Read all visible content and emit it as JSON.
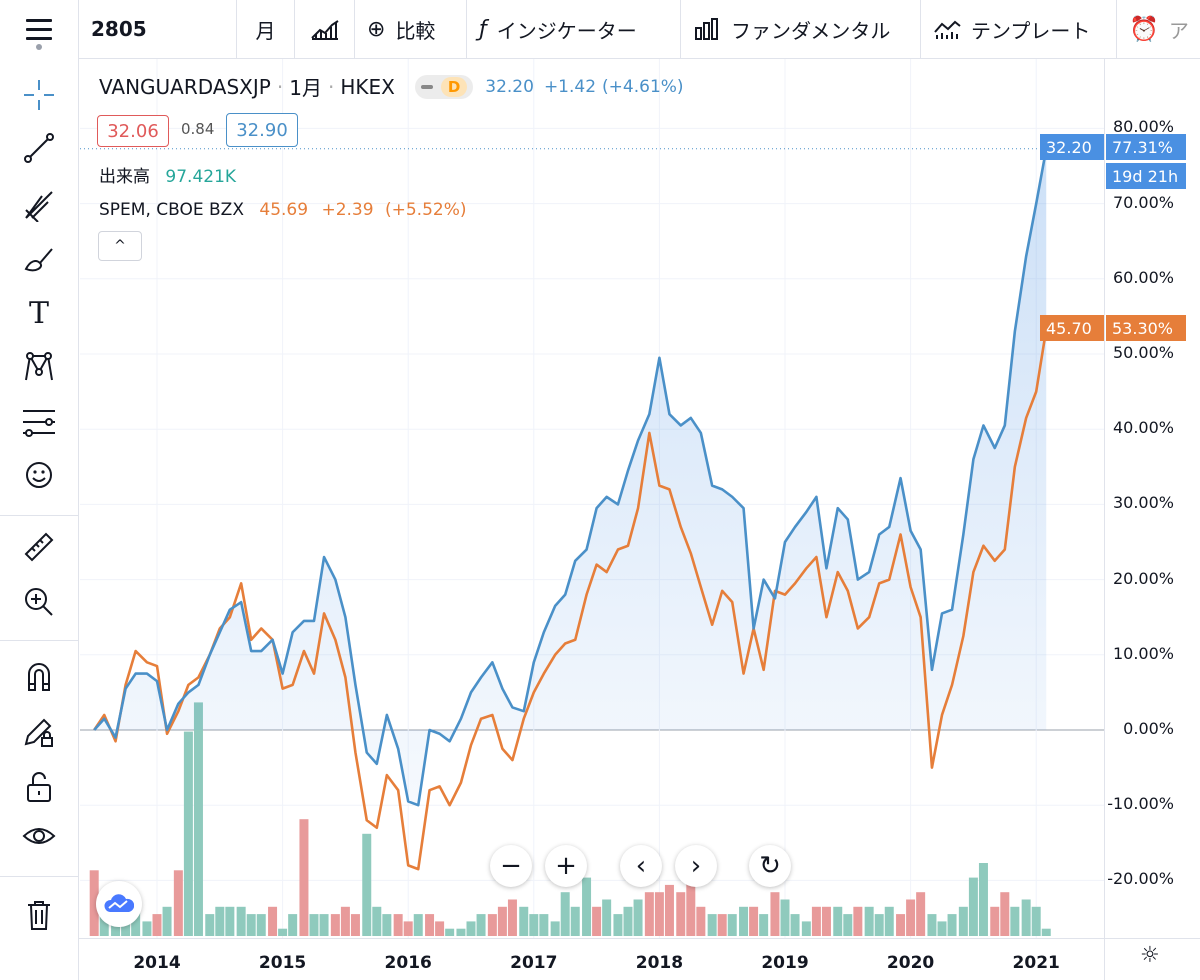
{
  "toolbar": {
    "symbol": "2805",
    "interval": "月",
    "compare_label": "比較",
    "indicator_label": "インジケーター",
    "fundamental_label": "ファンダメンタル",
    "template_label": "テンプレート",
    "alert_label": "ア",
    "icons": [
      "menu-icon",
      "bar-style-icon",
      "plus-circle-icon",
      "fx-icon",
      "bar-chart-icon",
      "template-icon",
      "alarm-clock-icon"
    ]
  },
  "left_tools": [
    "crosshair-icon",
    "trendline-icon",
    "pitchfork-icon",
    "brush-icon",
    "text-icon",
    "pattern-icon",
    "forecast-icon",
    "emoji-icon",
    "ruler-icon",
    "zoom-in-icon",
    "magnet-icon",
    "lock-pencil-icon",
    "unlock-icon",
    "eye-icon",
    "trash-icon"
  ],
  "legend": {
    "symbol": "VANGUARDASXJP",
    "interval": "1月",
    "exchange": "HKEX",
    "badge": "D",
    "price": "32.20",
    "change": "+1.42",
    "change_pct": "(+4.61%)",
    "bid": "32.06",
    "spread": "0.84",
    "ask": "32.90",
    "volume_label": "出来高",
    "volume_value": "97.421K",
    "compare_symbol": "SPEM, CBOE BZX",
    "compare_price": "45.69",
    "compare_change": "+2.39",
    "compare_change_pct": "(+5.52%)",
    "collapse": "^"
  },
  "price_tags": {
    "blue_price": "32.20",
    "blue_pct": "77.31%",
    "countdown": "19d 21h",
    "orange_price": "45.70",
    "orange_pct": "53.30%"
  },
  "colors": {
    "blue": "#4a90c8",
    "orange": "#e67e3a",
    "vol_up": "#8fcabd",
    "vol_down": "#e89a9a",
    "tag_blue": "#4a90e2",
    "tag_orange": "#e67e3a"
  },
  "chart_data": {
    "type": "line",
    "y_axis_unit": "%",
    "ylim": [
      -25,
      82
    ],
    "y_ticks": [
      "80.00%",
      "70.00%",
      "60.00%",
      "50.00%",
      "40.00%",
      "30.00%",
      "20.00%",
      "10.00%",
      "0.00%",
      "-10.00%",
      "-20.00%"
    ],
    "x_ticks": [
      "2014",
      "2015",
      "2016",
      "2017",
      "2018",
      "2019",
      "2020",
      "2021"
    ],
    "x_range": [
      2013.5,
      2021.2
    ],
    "grid": true,
    "series": [
      {
        "name": "VANGUARDASXJP",
        "x": [
          2013.5,
          2013.58,
          2013.67,
          2013.75,
          2013.83,
          2013.92,
          2014.0,
          2014.08,
          2014.17,
          2014.25,
          2014.33,
          2014.42,
          2014.5,
          2014.58,
          2014.67,
          2014.75,
          2014.83,
          2014.92,
          2015.0,
          2015.08,
          2015.17,
          2015.25,
          2015.33,
          2015.42,
          2015.5,
          2015.58,
          2015.67,
          2015.75,
          2015.83,
          2015.92,
          2016.0,
          2016.08,
          2016.17,
          2016.25,
          2016.33,
          2016.42,
          2016.5,
          2016.58,
          2016.67,
          2016.75,
          2016.83,
          2016.92,
          2017.0,
          2017.08,
          2017.17,
          2017.25,
          2017.33,
          2017.42,
          2017.5,
          2017.58,
          2017.67,
          2017.75,
          2017.83,
          2017.92,
          2018.0,
          2018.08,
          2018.17,
          2018.25,
          2018.33,
          2018.42,
          2018.5,
          2018.58,
          2018.67,
          2018.75,
          2018.83,
          2018.92,
          2019.0,
          2019.08,
          2019.17,
          2019.25,
          2019.33,
          2019.42,
          2019.5,
          2019.58,
          2019.67,
          2019.75,
          2019.83,
          2019.92,
          2020.0,
          2020.08,
          2020.17,
          2020.25,
          2020.33,
          2020.42,
          2020.5,
          2020.58,
          2020.67,
          2020.75,
          2020.83,
          2020.92,
          2021.0,
          2021.08
        ],
        "values": [
          0.0,
          1.5,
          -1.0,
          5.5,
          7.5,
          7.5,
          6.5,
          0.0,
          3.5,
          5.0,
          6.0,
          10.0,
          13.0,
          16.0,
          17.0,
          10.5,
          10.5,
          12.0,
          7.5,
          13.0,
          14.5,
          14.5,
          23.0,
          20.0,
          15.0,
          6.0,
          -3.0,
          -4.5,
          2.0,
          -2.5,
          -9.5,
          -10.0,
          0.0,
          -0.5,
          -1.5,
          1.5,
          5.0,
          7.0,
          9.0,
          5.5,
          3.0,
          2.5,
          9.0,
          13.0,
          16.5,
          18.0,
          22.5,
          24.0,
          29.5,
          31.0,
          30.0,
          34.5,
          38.5,
          42.0,
          49.5,
          42.0,
          40.5,
          41.5,
          39.5,
          32.5,
          32.0,
          31.0,
          29.5,
          13.5,
          20.0,
          17.5,
          25.0,
          27.0,
          29.0,
          31.0,
          21.5,
          29.5,
          28.0,
          20.0,
          21.0,
          26.0,
          27.0,
          33.5,
          26.5,
          24.0,
          8.0,
          15.5,
          16.0,
          26.0,
          36.0,
          40.5,
          37.5,
          40.5,
          53.0,
          63.0,
          70.0,
          77.3
        ]
      },
      {
        "name": "SPEM, CBOE BZX",
        "x": [
          2013.5,
          2013.58,
          2013.67,
          2013.75,
          2013.83,
          2013.92,
          2014.0,
          2014.08,
          2014.17,
          2014.25,
          2014.33,
          2014.42,
          2014.5,
          2014.58,
          2014.67,
          2014.75,
          2014.83,
          2014.92,
          2015.0,
          2015.08,
          2015.17,
          2015.25,
          2015.33,
          2015.42,
          2015.5,
          2015.58,
          2015.67,
          2015.75,
          2015.83,
          2015.92,
          2016.0,
          2016.08,
          2016.17,
          2016.25,
          2016.33,
          2016.42,
          2016.5,
          2016.58,
          2016.67,
          2016.75,
          2016.83,
          2016.92,
          2017.0,
          2017.08,
          2017.17,
          2017.25,
          2017.33,
          2017.42,
          2017.5,
          2017.58,
          2017.67,
          2017.75,
          2017.83,
          2017.92,
          2018.0,
          2018.08,
          2018.17,
          2018.25,
          2018.33,
          2018.42,
          2018.5,
          2018.58,
          2018.67,
          2018.75,
          2018.83,
          2018.92,
          2019.0,
          2019.08,
          2019.17,
          2019.25,
          2019.33,
          2019.42,
          2019.5,
          2019.58,
          2019.67,
          2019.75,
          2019.83,
          2019.92,
          2020.0,
          2020.08,
          2020.17,
          2020.25,
          2020.33,
          2020.42,
          2020.5,
          2020.58,
          2020.67,
          2020.75,
          2020.83,
          2020.92,
          2021.0,
          2021.08
        ],
        "values": [
          0.0,
          2.0,
          -1.5,
          6.0,
          10.5,
          9.0,
          8.5,
          -0.5,
          2.5,
          6.0,
          7.0,
          10.0,
          13.5,
          15.0,
          19.5,
          12.0,
          13.5,
          12.0,
          5.5,
          6.0,
          10.5,
          7.5,
          15.5,
          12.0,
          7.0,
          -3.0,
          -12.0,
          -13.0,
          -6.0,
          -8.0,
          -18.0,
          -18.5,
          -8.0,
          -7.5,
          -10.0,
          -7.0,
          -2.0,
          1.5,
          2.0,
          -2.5,
          -4.0,
          1.5,
          5.0,
          7.5,
          10.0,
          11.5,
          12.0,
          18.0,
          22.0,
          21.0,
          24.0,
          24.5,
          29.5,
          39.5,
          32.5,
          32.0,
          27.0,
          23.5,
          19.0,
          14.0,
          18.5,
          17.0,
          7.5,
          13.5,
          8.0,
          18.5,
          18.0,
          19.5,
          21.5,
          23.0,
          15.0,
          21.0,
          18.5,
          13.5,
          15.0,
          19.5,
          20.0,
          26.0,
          19.0,
          15.0,
          -5.0,
          2.0,
          6.0,
          12.5,
          21.0,
          24.5,
          22.5,
          24.0,
          35.0,
          41.5,
          45.0,
          53.3
        ]
      }
    ],
    "volume": {
      "x": [
        2013.5,
        2013.58,
        2013.67,
        2013.75,
        2013.83,
        2013.92,
        2014.0,
        2014.08,
        2014.17,
        2014.25,
        2014.33,
        2014.42,
        2014.5,
        2014.58,
        2014.67,
        2014.75,
        2014.83,
        2014.92,
        2015.0,
        2015.08,
        2015.17,
        2015.25,
        2015.33,
        2015.42,
        2015.5,
        2015.58,
        2015.67,
        2015.75,
        2015.83,
        2015.92,
        2016.0,
        2016.08,
        2016.17,
        2016.25,
        2016.33,
        2016.42,
        2016.5,
        2016.58,
        2016.67,
        2016.75,
        2016.83,
        2016.92,
        2017.0,
        2017.08,
        2017.17,
        2017.25,
        2017.33,
        2017.42,
        2017.5,
        2017.58,
        2017.67,
        2017.75,
        2017.83,
        2017.92,
        2018.0,
        2018.08,
        2018.17,
        2018.25,
        2018.33,
        2018.42,
        2018.5,
        2018.58,
        2018.67,
        2018.75,
        2018.83,
        2018.92,
        2019.0,
        2019.08,
        2019.17,
        2019.25,
        2019.33,
        2019.42,
        2019.5,
        2019.58,
        2019.67,
        2019.75,
        2019.83,
        2019.92,
        2020.0,
        2020.08,
        2020.17,
        2020.25,
        2020.33,
        2020.42,
        2020.5,
        2020.58,
        2020.67,
        2020.75,
        2020.83,
        2020.92,
        2021.0,
        2021.08
      ],
      "values": [
        9,
        3,
        2,
        4,
        5,
        2,
        3,
        4,
        9,
        28,
        32,
        3,
        4,
        4,
        4,
        3,
        3,
        4,
        1,
        3,
        16,
        3,
        3,
        3,
        4,
        3,
        14,
        4,
        3,
        3,
        2,
        3,
        3,
        2,
        1,
        1,
        2,
        3,
        3,
        4,
        5,
        4,
        3,
        3,
        2,
        6,
        4,
        8,
        4,
        5,
        3,
        4,
        5,
        6,
        6,
        7,
        6,
        8,
        4,
        3,
        3,
        3,
        4,
        4,
        3,
        6,
        5,
        3,
        2,
        4,
        4,
        4,
        3,
        4,
        4,
        3,
        4,
        3,
        5,
        6,
        3,
        2,
        3,
        4,
        8,
        10,
        4,
        6,
        4,
        5,
        4,
        1
      ],
      "up": [
        false,
        true,
        true,
        true,
        true,
        true,
        false,
        true,
        false,
        true,
        true,
        true,
        true,
        true,
        true,
        true,
        true,
        false,
        true,
        true,
        false,
        true,
        true,
        false,
        false,
        false,
        true,
        true,
        true,
        false,
        false,
        true,
        false,
        false,
        true,
        true,
        true,
        true,
        false,
        false,
        false,
        true,
        true,
        true,
        true,
        true,
        true,
        true,
        false,
        true,
        true,
        true,
        true,
        false,
        false,
        false,
        false,
        false,
        false,
        true,
        false,
        true,
        true,
        false,
        true,
        false,
        true,
        true,
        true,
        false,
        false,
        true,
        true,
        false,
        true,
        true,
        true,
        false,
        false,
        false,
        true,
        true,
        true,
        true,
        true,
        true,
        false,
        false,
        true,
        true,
        true,
        true
      ]
    }
  },
  "nav_buttons": [
    "−",
    "+",
    "‹",
    "›",
    "↻"
  ]
}
